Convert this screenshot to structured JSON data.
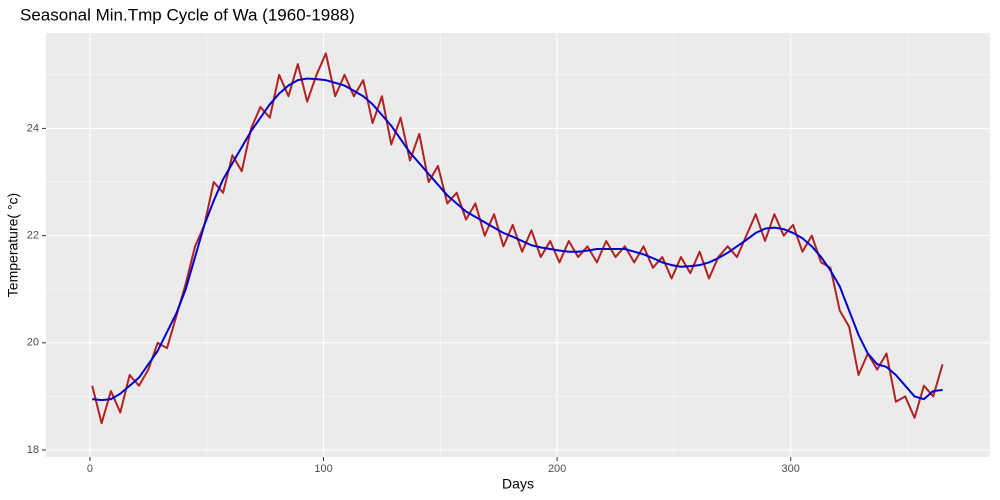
{
  "chart_data": {
    "type": "line",
    "title": "Seasonal Min.Tmp Cycle of Wa (1960-1988)",
    "x_label": "Days",
    "y_label": "Temperature( °c)",
    "x": [
      1,
      5,
      9,
      13,
      17,
      21,
      25,
      29,
      33,
      37,
      41,
      45,
      49,
      53,
      57,
      61,
      65,
      69,
      73,
      77,
      81,
      85,
      89,
      93,
      97,
      101,
      105,
      109,
      113,
      117,
      121,
      125,
      129,
      133,
      137,
      141,
      145,
      149,
      153,
      157,
      161,
      165,
      169,
      173,
      177,
      181,
      185,
      189,
      193,
      197,
      201,
      205,
      209,
      213,
      217,
      221,
      225,
      229,
      233,
      237,
      241,
      245,
      249,
      253,
      257,
      261,
      265,
      269,
      273,
      277,
      281,
      285,
      289,
      293,
      297,
      301,
      305,
      309,
      313,
      317,
      321,
      325,
      329,
      333,
      337,
      341,
      345,
      349,
      353,
      357,
      361,
      365
    ],
    "series": [
      {
        "color": "#b22222",
        "values": [
          19.2,
          18.5,
          19.1,
          18.7,
          19.4,
          19.2,
          19.5,
          20.0,
          19.9,
          20.5,
          21.1,
          21.8,
          22.2,
          23.0,
          22.8,
          23.5,
          23.2,
          24.0,
          24.4,
          24.2,
          25.0,
          24.6,
          25.2,
          24.5,
          25.0,
          25.4,
          24.6,
          25.0,
          24.6,
          24.9,
          24.1,
          24.6,
          23.7,
          24.2,
          23.4,
          23.9,
          23.0,
          23.3,
          22.6,
          22.8,
          22.3,
          22.6,
          22.0,
          22.4,
          21.8,
          22.2,
          21.7,
          22.1,
          21.6,
          21.9,
          21.5,
          21.9,
          21.6,
          21.8,
          21.5,
          21.9,
          21.6,
          21.8,
          21.5,
          21.8,
          21.4,
          21.6,
          21.2,
          21.6,
          21.3,
          21.7,
          21.2,
          21.6,
          21.8,
          21.6,
          22.0,
          22.4,
          21.9,
          22.4,
          22.0,
          22.2,
          21.7,
          22.0,
          21.5,
          21.4,
          20.6,
          20.3,
          19.4,
          19.8,
          19.5,
          19.8,
          18.9,
          19.0,
          18.6,
          19.2,
          19.0,
          19.6
        ]
      },
      {
        "color": "#0000cd",
        "values": [
          18.95,
          18.93,
          18.95,
          19.05,
          19.2,
          19.35,
          19.6,
          19.85,
          20.2,
          20.55,
          21.0,
          21.6,
          22.2,
          22.65,
          23.05,
          23.35,
          23.65,
          23.95,
          24.2,
          24.45,
          24.65,
          24.8,
          24.9,
          24.93,
          24.92,
          24.9,
          24.85,
          24.8,
          24.7,
          24.6,
          24.45,
          24.25,
          24.05,
          23.8,
          23.55,
          23.35,
          23.15,
          22.95,
          22.75,
          22.6,
          22.45,
          22.35,
          22.25,
          22.15,
          22.05,
          21.98,
          21.9,
          21.82,
          21.78,
          21.75,
          21.72,
          21.7,
          21.7,
          21.72,
          21.75,
          21.75,
          21.75,
          21.75,
          21.7,
          21.65,
          21.58,
          21.5,
          21.45,
          21.42,
          21.43,
          21.45,
          21.5,
          21.58,
          21.68,
          21.8,
          21.92,
          22.05,
          22.13,
          22.15,
          22.12,
          22.05,
          21.95,
          21.8,
          21.6,
          21.35,
          21.05,
          20.6,
          20.15,
          19.8,
          19.6,
          19.55,
          19.4,
          19.2,
          19.0,
          18.95,
          19.1,
          19.12
        ]
      }
    ],
    "xlim": [
      -18.8,
      385.3
    ],
    "ylim": [
      17.87,
      25.78
    ],
    "xticks": [
      0,
      100,
      200,
      300
    ],
    "yticks": [
      18,
      20,
      22,
      24
    ],
    "xminor": [
      50,
      150,
      250,
      350
    ],
    "yminor": [
      19,
      21,
      23,
      25
    ],
    "grid": true
  }
}
